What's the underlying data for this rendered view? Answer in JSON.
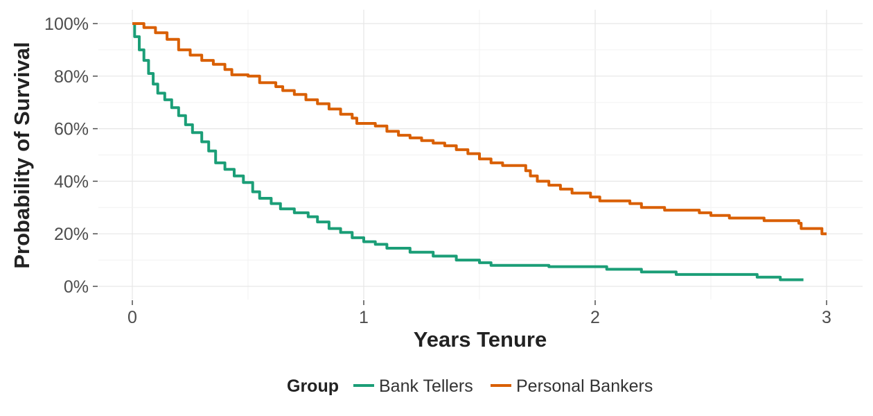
{
  "chart_data": {
    "type": "line",
    "subtype": "step",
    "title": "",
    "xlabel": "Years Tenure",
    "ylabel": "Probability of Survival",
    "xlim": [
      0,
      3
    ],
    "ylim": [
      0,
      1
    ],
    "x_ticks": [
      {
        "value": 0,
        "label": "0"
      },
      {
        "value": 1,
        "label": "1"
      },
      {
        "value": 2,
        "label": "2"
      },
      {
        "value": 3,
        "label": "3"
      }
    ],
    "y_ticks": [
      {
        "value": 0,
        "label": "0%"
      },
      {
        "value": 0.2,
        "label": "20%"
      },
      {
        "value": 0.4,
        "label": "40%"
      },
      {
        "value": 0.6,
        "label": "60%"
      },
      {
        "value": 0.8,
        "label": "80%"
      },
      {
        "value": 1.0,
        "label": "100%"
      }
    ],
    "grid": true,
    "legend": {
      "title": "Group",
      "position": "bottom"
    },
    "series": [
      {
        "name": "Bank Tellers",
        "color": "#1b9e77",
        "points": [
          [
            0,
            1.0
          ],
          [
            0.01,
            0.95
          ],
          [
            0.03,
            0.9
          ],
          [
            0.05,
            0.86
          ],
          [
            0.07,
            0.81
          ],
          [
            0.09,
            0.77
          ],
          [
            0.11,
            0.735
          ],
          [
            0.14,
            0.71
          ],
          [
            0.17,
            0.68
          ],
          [
            0.2,
            0.65
          ],
          [
            0.23,
            0.615
          ],
          [
            0.26,
            0.585
          ],
          [
            0.3,
            0.55
          ],
          [
            0.33,
            0.515
          ],
          [
            0.36,
            0.47
          ],
          [
            0.4,
            0.445
          ],
          [
            0.44,
            0.42
          ],
          [
            0.48,
            0.395
          ],
          [
            0.52,
            0.36
          ],
          [
            0.55,
            0.335
          ],
          [
            0.6,
            0.315
          ],
          [
            0.64,
            0.295
          ],
          [
            0.7,
            0.28
          ],
          [
            0.76,
            0.265
          ],
          [
            0.8,
            0.245
          ],
          [
            0.85,
            0.22
          ],
          [
            0.9,
            0.205
          ],
          [
            0.95,
            0.185
          ],
          [
            1.0,
            0.17
          ],
          [
            1.05,
            0.16
          ],
          [
            1.1,
            0.145
          ],
          [
            1.2,
            0.13
          ],
          [
            1.3,
            0.115
          ],
          [
            1.4,
            0.1
          ],
          [
            1.5,
            0.09
          ],
          [
            1.55,
            0.08
          ],
          [
            1.8,
            0.075
          ],
          [
            2.05,
            0.065
          ],
          [
            2.2,
            0.055
          ],
          [
            2.35,
            0.045
          ],
          [
            2.7,
            0.035
          ],
          [
            2.8,
            0.025
          ],
          [
            2.9,
            0.025
          ]
        ]
      },
      {
        "name": "Personal Bankers",
        "color": "#d95f02",
        "points": [
          [
            0,
            1.0
          ],
          [
            0.05,
            0.985
          ],
          [
            0.1,
            0.965
          ],
          [
            0.15,
            0.94
          ],
          [
            0.2,
            0.9
          ],
          [
            0.25,
            0.88
          ],
          [
            0.3,
            0.86
          ],
          [
            0.35,
            0.845
          ],
          [
            0.4,
            0.825
          ],
          [
            0.43,
            0.805
          ],
          [
            0.5,
            0.8
          ],
          [
            0.55,
            0.775
          ],
          [
            0.62,
            0.76
          ],
          [
            0.65,
            0.745
          ],
          [
            0.7,
            0.73
          ],
          [
            0.75,
            0.71
          ],
          [
            0.8,
            0.695
          ],
          [
            0.85,
            0.675
          ],
          [
            0.9,
            0.655
          ],
          [
            0.95,
            0.64
          ],
          [
            0.97,
            0.62
          ],
          [
            1.05,
            0.61
          ],
          [
            1.1,
            0.59
          ],
          [
            1.15,
            0.575
          ],
          [
            1.2,
            0.565
          ],
          [
            1.25,
            0.555
          ],
          [
            1.3,
            0.545
          ],
          [
            1.35,
            0.535
          ],
          [
            1.4,
            0.52
          ],
          [
            1.45,
            0.505
          ],
          [
            1.5,
            0.485
          ],
          [
            1.55,
            0.47
          ],
          [
            1.6,
            0.46
          ],
          [
            1.7,
            0.44
          ],
          [
            1.72,
            0.42
          ],
          [
            1.75,
            0.4
          ],
          [
            1.8,
            0.385
          ],
          [
            1.85,
            0.37
          ],
          [
            1.9,
            0.355
          ],
          [
            1.98,
            0.34
          ],
          [
            2.02,
            0.325
          ],
          [
            2.15,
            0.315
          ],
          [
            2.2,
            0.3
          ],
          [
            2.3,
            0.29
          ],
          [
            2.45,
            0.28
          ],
          [
            2.5,
            0.27
          ],
          [
            2.58,
            0.26
          ],
          [
            2.73,
            0.25
          ],
          [
            2.88,
            0.24
          ],
          [
            2.89,
            0.22
          ],
          [
            2.98,
            0.2
          ],
          [
            3.0,
            0.2
          ]
        ]
      }
    ]
  }
}
